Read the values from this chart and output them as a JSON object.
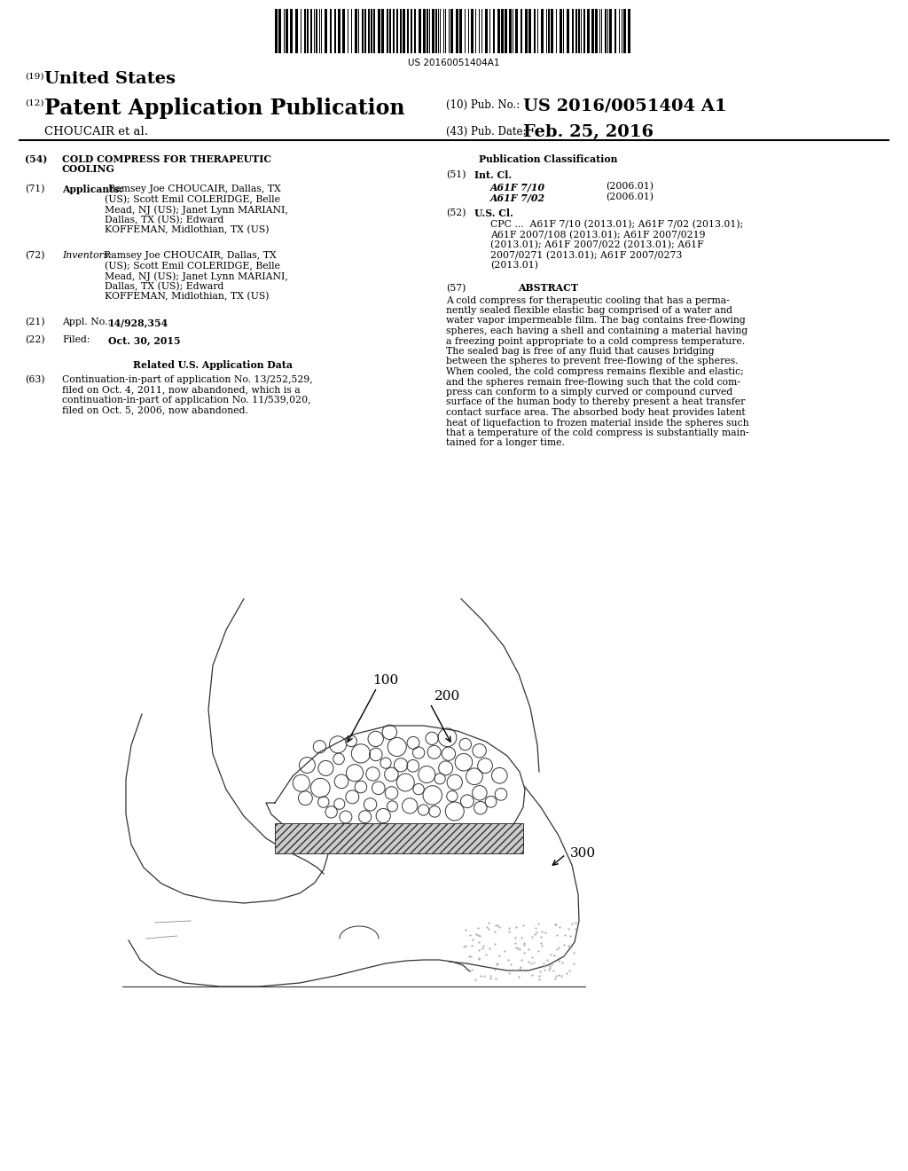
{
  "background_color": "#ffffff",
  "barcode_text": "US 20160051404A1",
  "header": {
    "country_label": "(19)",
    "country": "United States",
    "type_label": "(12)",
    "type": "Patent Application Publication",
    "inventor": "CHOUCAIR et al.",
    "pub_no_label": "(10) Pub. No.:",
    "pub_no": "US 2016/0051404 A1",
    "date_label": "(43) Pub. Date:",
    "date": "Feb. 25, 2016"
  },
  "left_col": {
    "title_num": "(54)",
    "title_line1": "COLD COMPRESS FOR THERAPEUTIC",
    "title_line2": "COOLING",
    "app71_num": "(71)",
    "app71_label": "Applicants:",
    "app71_lines": [
      "Ramsey Joe CHOUCAIR, Dallas, TX",
      "(US); Scott Emil COLERIDGE, Belle",
      "Mead, NJ (US); Janet Lynn MARIANI,",
      "Dallas, TX (US); Edward",
      "KOFFEMAN, Midlothian, TX (US)"
    ],
    "inv72_num": "(72)",
    "inv72_label": "Inventors: ",
    "inv72_lines": [
      "Ramsey Joe CHOUCAIR, Dallas, TX",
      "(US); Scott Emil COLERIDGE, Belle",
      "Mead, NJ (US); Janet Lynn MARIANI,",
      "Dallas, TX (US); Edward",
      "KOFFEMAN, Midlothian, TX (US)"
    ],
    "appl_num": "(21)",
    "appl_label": "Appl. No.:",
    "appl_val": "14/928,354",
    "filed_num": "(22)",
    "filed_label": "Filed:",
    "filed_val": "Oct. 30, 2015",
    "related_header": "Related U.S. Application Data",
    "related63_num": "(63)",
    "related63_lines": [
      "Continuation-in-part of application No. 13/252,529,",
      "filed on Oct. 4, 2011, now abandoned, which is a",
      "continuation-in-part of application No. 11/539,020,",
      "filed on Oct. 5, 2006, now abandoned."
    ]
  },
  "right_col": {
    "pub_class_header": "Publication Classification",
    "int_cl_num": "(51)",
    "int_cl_label": "Int. Cl.",
    "int_cl_entries": [
      [
        "A61F 7/10",
        "(2006.01)"
      ],
      [
        "A61F 7/02",
        "(2006.01)"
      ]
    ],
    "us_cl_num": "(52)",
    "us_cl_label": "U.S. Cl.",
    "us_cl_lines": [
      "CPC ...  A61F 7/10 (2013.01); A61F 7/02 (2013.01);",
      "A61F 2007/108 (2013.01); A61F 2007/0219",
      "(2013.01); A61F 2007/022 (2013.01); A61F",
      "2007/0271 (2013.01); A61F 2007/0273",
      "(2013.01)"
    ],
    "abstract_num": "(57)",
    "abstract_header": "ABSTRACT",
    "abstract_lines": [
      "A cold compress for therapeutic cooling that has a perma-",
      "nently sealed flexible elastic bag comprised of a water and",
      "water vapor impermeable film. The bag contains free-flowing",
      "spheres, each having a shell and containing a material having",
      "a freezing point appropriate to a cold compress temperature.",
      "The sealed bag is free of any fluid that causes bridging",
      "between the spheres to prevent free-flowing of the spheres.",
      "When cooled, the cold compress remains flexible and elastic;",
      "and the spheres remain free-flowing such that the cold com-",
      "press can conform to a simply curved or compound curved",
      "surface of the human body to thereby present a heat transfer",
      "contact surface area. The absorbed body heat provides latent",
      "heat of liquefaction to frozen material inside the spheres such",
      "that a temperature of the cold compress is substantially main-",
      "tained for a longer time."
    ]
  },
  "diagram": {
    "label_100": "100",
    "label_200": "200",
    "label_300": "300"
  }
}
